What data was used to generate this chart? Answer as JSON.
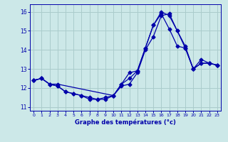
{
  "title": "",
  "xlabel": "Graphe des températures (°c)",
  "ylabel": "",
  "background_color": "#cce8e8",
  "grid_color": "#aacccc",
  "line_color": "#0000aa",
  "xlim": [
    -0.5,
    23.5
  ],
  "ylim": [
    10.8,
    16.4
  ],
  "yticks": [
    11,
    12,
    13,
    14,
    15,
    16
  ],
  "xticks": [
    0,
    1,
    2,
    3,
    4,
    5,
    6,
    7,
    8,
    9,
    10,
    11,
    12,
    13,
    14,
    15,
    16,
    17,
    18,
    19,
    20,
    21,
    22,
    23
  ],
  "series": [
    {
      "x": [
        0,
        1,
        2,
        3,
        4,
        5,
        6,
        7,
        8,
        9,
        10,
        11,
        12,
        13,
        14,
        15,
        16,
        17,
        18,
        19,
        20,
        21,
        22,
        23
      ],
      "y": [
        12.4,
        12.5,
        12.2,
        12.1,
        11.8,
        11.7,
        11.6,
        11.5,
        11.4,
        11.4,
        11.6,
        12.2,
        12.5,
        12.9,
        14.1,
        15.3,
        15.9,
        15.1,
        14.2,
        14.1,
        13.0,
        13.3,
        13.3,
        13.2
      ]
    },
    {
      "x": [
        0,
        1,
        2,
        3,
        10,
        11,
        12,
        13,
        14,
        15,
        16,
        17,
        18,
        19,
        20,
        21,
        22,
        23
      ],
      "y": [
        12.4,
        12.5,
        12.2,
        12.2,
        11.6,
        12.2,
        12.8,
        12.9,
        14.1,
        15.3,
        16.0,
        15.8,
        15.0,
        14.2,
        13.0,
        13.5,
        13.3,
        13.2
      ]
    },
    {
      "x": [
        0,
        1,
        2,
        3,
        4,
        5,
        6,
        7,
        8,
        9,
        10,
        11,
        12,
        13,
        14,
        15,
        16,
        17,
        18,
        19,
        20,
        21,
        22,
        23
      ],
      "y": [
        12.4,
        12.5,
        12.2,
        12.1,
        11.8,
        11.7,
        11.6,
        11.4,
        11.4,
        11.5,
        11.6,
        12.1,
        12.2,
        12.8,
        14.0,
        14.7,
        15.8,
        15.9,
        15.0,
        14.1,
        13.0,
        13.3,
        13.3,
        13.2
      ]
    }
  ]
}
